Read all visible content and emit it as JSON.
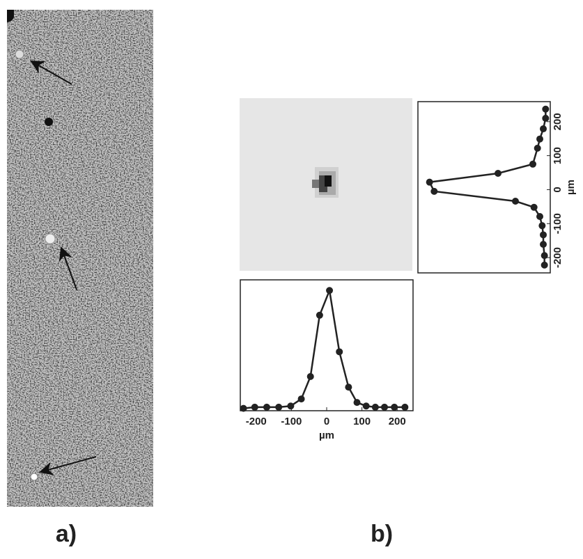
{
  "panel_labels": [
    "a)",
    "b)"
  ],
  "chart_data": [
    {
      "type": "line",
      "orientation": "horizontal",
      "color": "#222222",
      "x": [
        -236,
        -204,
        -170,
        -136,
        -102,
        -72,
        -46,
        -20,
        8,
        36,
        62,
        86,
        112,
        138,
        164,
        192,
        222
      ],
      "values": [
        0,
        0.01,
        0.01,
        0.01,
        0.02,
        0.08,
        0.27,
        0.79,
        1.0,
        0.48,
        0.18,
        0.05,
        0.02,
        0.01,
        0.01,
        0.01,
        0.01
      ],
      "xlabel": "µm",
      "xlim": [
        -245,
        245
      ],
      "xticks": [
        -200,
        -100,
        0,
        100,
        200
      ],
      "ylim": [
        -0.02,
        1.09
      ]
    },
    {
      "type": "line",
      "orientation": "vertical",
      "color": "#222222",
      "x": [
        237,
        210,
        179,
        149,
        122,
        75,
        48,
        22,
        -5,
        -34,
        -52,
        -79,
        -106,
        -133,
        -161,
        -194,
        -222
      ],
      "values": [
        0,
        0,
        0.02,
        0.05,
        0.07,
        0.11,
        0.41,
        1.0,
        0.96,
        0.26,
        0.1,
        0.05,
        0.03,
        0.02,
        0.02,
        0.01,
        0.01
      ],
      "xlabel": "µm",
      "xlim": [
        -245,
        259
      ],
      "xticks": [
        -200,
        -100,
        0,
        100,
        200
      ],
      "ylim": [
        -0.04,
        1.1
      ]
    }
  ]
}
